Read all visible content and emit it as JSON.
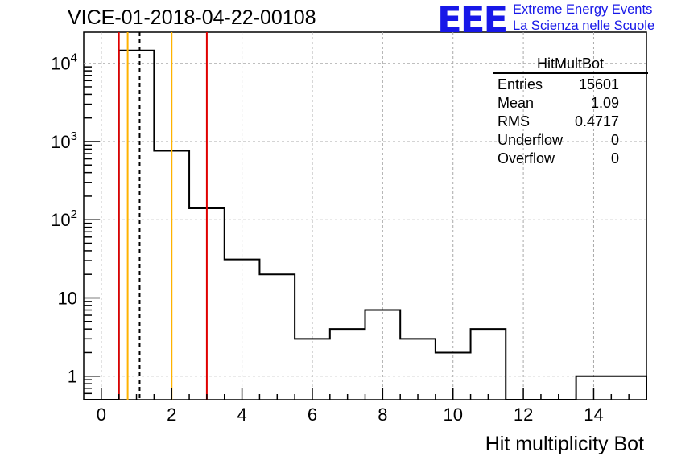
{
  "title": "VICE-01-2018-04-22-00108",
  "logo": {
    "mark": "EEE",
    "line1": "Extreme Energy Events",
    "line2": "La Scienza nelle Scuole",
    "color": "#1717e8"
  },
  "stats": {
    "name": "HitMultBot",
    "rows": [
      {
        "label": "Entries",
        "value": "15601"
      },
      {
        "label": "Mean",
        "value": "1.09"
      },
      {
        "label": "RMS",
        "value": "0.4717"
      },
      {
        "label": "Underflow",
        "value": "0"
      },
      {
        "label": "Overflow",
        "value": "0"
      }
    ]
  },
  "chart_data": {
    "type": "bar",
    "xlabel": "Hit multiplicity Bot",
    "ylabel": "",
    "y_scale": "log",
    "xlim": [
      -0.5,
      15.5
    ],
    "ylim": [
      0.5,
      25000
    ],
    "grid": true,
    "x_ticks": [
      0,
      2,
      4,
      6,
      8,
      10,
      12,
      14
    ],
    "y_ticks": [
      {
        "value": 1,
        "label": "1",
        "exp": ""
      },
      {
        "value": 10,
        "label": "10",
        "exp": ""
      },
      {
        "value": 100,
        "label": "10",
        "exp": "2"
      },
      {
        "value": 1000,
        "label": "10",
        "exp": "3"
      },
      {
        "value": 10000,
        "label": "10",
        "exp": "4"
      }
    ],
    "bin_edges": [
      -0.5,
      0.5,
      1.5,
      2.5,
      3.5,
      4.5,
      5.5,
      6.5,
      7.5,
      8.5,
      9.5,
      10.5,
      11.5,
      12.5,
      13.5,
      14.5,
      15.5
    ],
    "values": [
      0,
      14600,
      760,
      140,
      31,
      20,
      3,
      4,
      7,
      3,
      2,
      4,
      0,
      0,
      1,
      1
    ],
    "vertical_lines": [
      {
        "x": 0.5,
        "color": "#e00000",
        "style": "solid"
      },
      {
        "x": 0.75,
        "color": "#ffb300",
        "style": "solid"
      },
      {
        "x": 1.09,
        "color": "#000000",
        "style": "dashed"
      },
      {
        "x": 2.0,
        "color": "#ffb300",
        "style": "solid"
      },
      {
        "x": 3.0,
        "color": "#e00000",
        "style": "solid"
      }
    ]
  }
}
